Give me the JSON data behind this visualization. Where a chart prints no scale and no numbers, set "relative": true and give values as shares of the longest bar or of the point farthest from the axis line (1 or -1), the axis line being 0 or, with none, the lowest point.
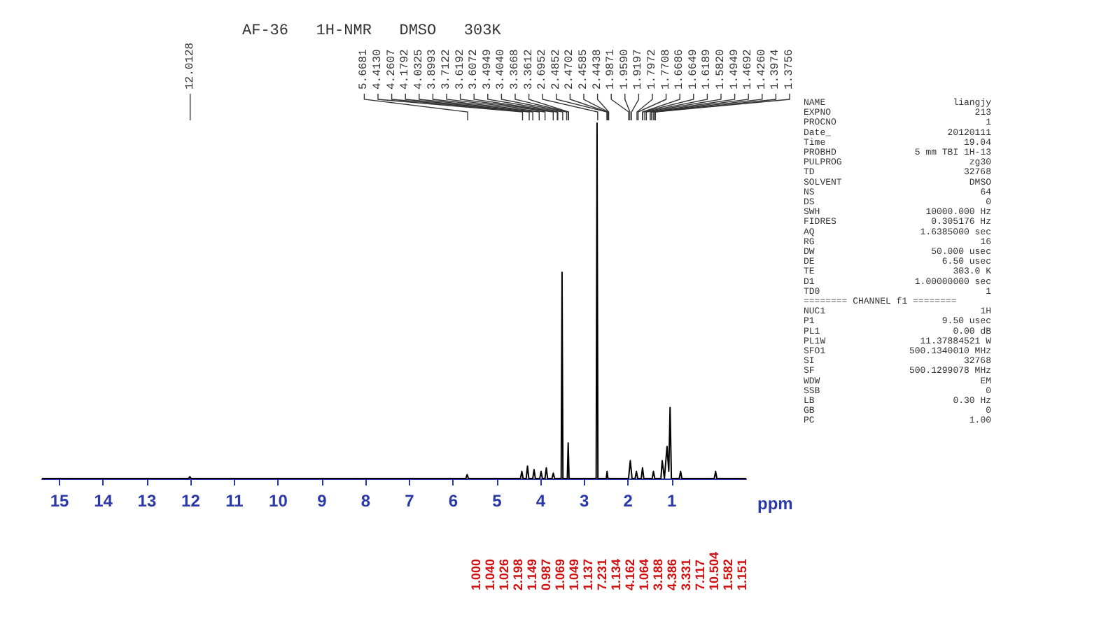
{
  "chart_data": {
    "type": "line",
    "title": "AF-36   1H-NMR   DMSO   303K",
    "xlabel": "ppm",
    "relative": true,
    "color": "#000000",
    "grid": false,
    "tick_labels": "x",
    "xlim": [
      15.4,
      -0.7
    ],
    "xticks": [
      15,
      14,
      13,
      12,
      11,
      10,
      9,
      8,
      7,
      6,
      5,
      4,
      3,
      2,
      1
    ],
    "x": [
      15.4,
      12.05,
      12.02,
      11.99,
      5.71,
      5.68,
      5.65,
      4.46,
      4.43,
      4.4,
      4.33,
      4.3,
      4.27,
      4.18,
      4.15,
      4.12,
      4.02,
      3.99,
      3.96,
      3.9,
      3.87,
      3.84,
      3.74,
      3.71,
      3.68,
      3.53,
      3.51,
      3.49,
      3.39,
      3.37,
      3.35,
      2.73,
      2.71,
      2.69,
      2.5,
      2.48,
      2.46,
      1.99,
      1.95,
      1.91,
      1.84,
      1.81,
      1.78,
      1.7,
      1.67,
      1.64,
      1.45,
      1.42,
      1.39,
      1.25,
      1.22,
      1.17,
      1.11,
      1.07,
      1.04,
      1.01,
      0.83,
      0.8,
      0.77,
      0.03,
      0.0,
      -0.03,
      -0.7
    ],
    "values": [
      0,
      0,
      0.005,
      0,
      0,
      0.011,
      0,
      0,
      0.02,
      0,
      0,
      0.035,
      0,
      0,
      0.025,
      0,
      0,
      0.02,
      0,
      0,
      0.03,
      0,
      0,
      0.015,
      0,
      0,
      0.58,
      0,
      0,
      0.1,
      0,
      0,
      1.0,
      0,
      0,
      0.02,
      0,
      0,
      0.05,
      0,
      0,
      0.02,
      0,
      0,
      0.03,
      0,
      0,
      0.02,
      0,
      0,
      0.05,
      0,
      0.09,
      0.02,
      0.2,
      0,
      0,
      0.02,
      0,
      0,
      0.02,
      0,
      0
    ],
    "annotations": [
      {
        "text": "12.0128",
        "x": 12.0128
      },
      {
        "text": "5.6681",
        "x": 5.6681
      },
      {
        "text": "4.4130",
        "x": 4.413
      },
      {
        "text": "4.2607",
        "x": 4.2607
      },
      {
        "text": "4.1792",
        "x": 4.1792
      },
      {
        "text": "4.0325",
        "x": 4.0325
      },
      {
        "text": "3.8993",
        "x": 3.8993
      },
      {
        "text": "3.7122",
        "x": 3.7122
      },
      {
        "text": "3.6192",
        "x": 3.6192
      },
      {
        "text": "3.6072",
        "x": 3.6072
      },
      {
        "text": "3.4949",
        "x": 3.4949
      },
      {
        "text": "3.4040",
        "x": 3.404
      },
      {
        "text": "3.3668",
        "x": 3.3668
      },
      {
        "text": "3.3612",
        "x": 3.3612
      },
      {
        "text": "2.6952",
        "x": 2.6952
      },
      {
        "text": "2.4852",
        "x": 2.4852
      },
      {
        "text": "2.4702",
        "x": 2.4702
      },
      {
        "text": "2.4585",
        "x": 2.4585
      },
      {
        "text": "2.4438",
        "x": 2.4438
      },
      {
        "text": "1.9871",
        "x": 1.9871
      },
      {
        "text": "1.9590",
        "x": 1.959
      },
      {
        "text": "1.9197",
        "x": 1.9197
      },
      {
        "text": "1.7972",
        "x": 1.7972
      },
      {
        "text": "1.7708",
        "x": 1.7708
      },
      {
        "text": "1.6686",
        "x": 1.6686
      },
      {
        "text": "1.6649",
        "x": 1.6649
      },
      {
        "text": "1.6189",
        "x": 1.6189
      },
      {
        "text": "1.5820",
        "x": 1.582
      },
      {
        "text": "1.4949",
        "x": 1.4949
      },
      {
        "text": "1.4692",
        "x": 1.4692
      },
      {
        "text": "1.4260",
        "x": 1.426
      },
      {
        "text": "1.3974",
        "x": 1.3974
      },
      {
        "text": "1.3756",
        "x": 1.3756
      },
      "1.000",
      "1.040",
      "1.026",
      "2.198",
      "1.149",
      "0.987",
      "1.069",
      "1.049",
      "1.137",
      "7.231",
      "1.134",
      "4.162",
      "1.064",
      "3.188",
      "4.386",
      "3.331",
      "7.117",
      "10.504",
      "1.582",
      "1.151",
      "NAME\tliangjy",
      "EXPNO\t213",
      "PROCNO\t1",
      "Date_\t20120111",
      "Time\t19.04",
      "PROBHD\t5 mm TBI 1H-13",
      "PULPROG\tzg30",
      "TD\t32768",
      "SOLVENT\tDMSO",
      "NS\t64",
      "DS\t0",
      "SWH\t10000.000 Hz",
      "FIDRES\t0.305176 Hz",
      "AQ\t1.6385000 sec",
      "RG\t16",
      "DW\t50.000 usec",
      "DE\t6.50 usec",
      "TE\t303.0 K",
      "D1\t1.00000000 sec",
      "TD0\t1",
      "======== CHANNEL f1 ========",
      "NUC1\t1H",
      "P1\t9.50 usec",
      "PL1\t0.00 dB",
      "PL1W\t11.37884521 W",
      "SFO1\t500.1340010 MHz",
      "SI\t32768",
      "SF\t500.1299078 MHz",
      "WDW\tEM",
      "SSB\t0",
      "LB\t0.30 Hz",
      "GB\t0",
      "PC\t1.00"
    ]
  }
}
